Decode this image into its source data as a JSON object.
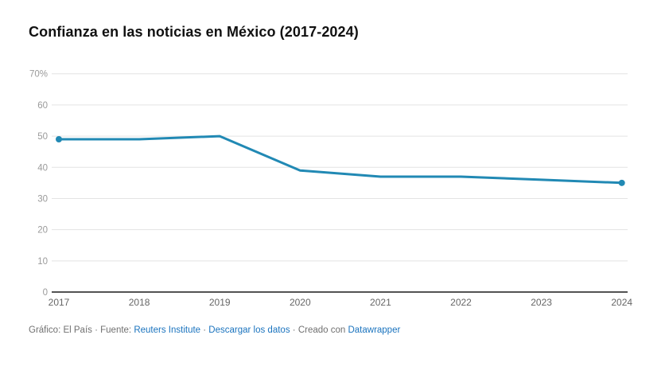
{
  "title": "Confianza en las noticias en México (2017-2024)",
  "chart_data": {
    "type": "line",
    "title": "Confianza en las noticias en México (2017-2024)",
    "x": [
      2017,
      2018,
      2019,
      2020,
      2021,
      2022,
      2023,
      2024
    ],
    "series": [
      {
        "name": "Confianza en las noticias (%)",
        "values": [
          49,
          49,
          50,
          39,
          37,
          37,
          36,
          35
        ]
      }
    ],
    "xlabel": "",
    "ylabel": "",
    "ylim": [
      0,
      70
    ],
    "yticks": [
      0,
      10,
      20,
      30,
      40,
      50,
      60,
      70
    ],
    "ytick_labels": [
      "0",
      "10",
      "20",
      "30",
      "40",
      "50",
      "60",
      "70%"
    ],
    "xtick_labels": [
      "2017",
      "2018",
      "2019",
      "2020",
      "2021",
      "2022",
      "2023",
      "2024"
    ],
    "grid": "horizontal",
    "legend": "none",
    "line_color": "#2189b4",
    "endpoint_markers": "first-and-last"
  },
  "footer": {
    "segments": [
      {
        "text": "Gráfico: El País"
      },
      {
        "text": " · "
      },
      {
        "text": "Fuente: "
      },
      {
        "text": "Reuters Institute"
      },
      {
        "text": " · "
      },
      {
        "text": "Descargar los datos"
      },
      {
        "text": " · "
      },
      {
        "text": "Creado con "
      },
      {
        "text": "Datawrapper"
      }
    ]
  },
  "colors": {
    "line": "#2189b4",
    "link": "#1a73be",
    "axis": "#1a1a1a",
    "grid": "#e3e3e3",
    "ytick_label": "#9a9a9a",
    "xtick_label": "#666666",
    "footer_text": "#707070",
    "title": "#111111",
    "background": "#ffffff"
  }
}
